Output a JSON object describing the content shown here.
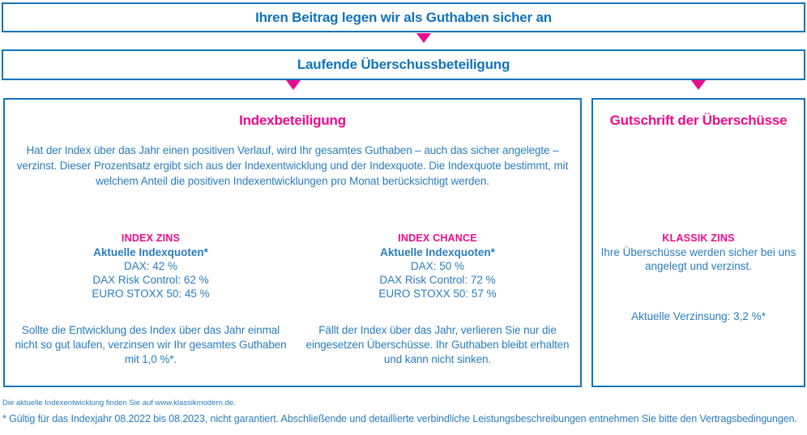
{
  "colors": {
    "blue_border": "#1173b9",
    "blue_text": "#2a7cbe",
    "pink": "#ec0b8b"
  },
  "banners": {
    "top": "Ihren Beitrag legen wir als Guthaben sicher an",
    "second": "Laufende Überschussbeteiligung"
  },
  "index_box": {
    "title": "Indexbeteiligung",
    "intro": "Hat der Index über das Jahr einen positiven Verlauf, wird Ihr gesamtes Guthaben – auch das sicher angelegte – verzinst. Dieser Prozentsatz ergibt sich aus der Indexentwicklung und der Indexquote. Die Indexquote bestimmt, mit welchem Anteil die positiven Indexentwicklungen pro Monat berücksichtigt werden.",
    "columns": [
      {
        "header": "INDEX ZINS",
        "subheader": "Aktuelle Indexquoten*",
        "quotes": [
          "DAX: 42 %",
          "DAX Risk Control: 62 %",
          "EURO STOXX 50: 45 %"
        ],
        "note": "Sollte die Entwicklung des Index über das Jahr einmal nicht so gut laufen, verzinsen wir Ihr gesamtes Guthaben mit 1,0 %*."
      },
      {
        "header": "INDEX CHANCE",
        "subheader": "Aktuelle Indexquoten*",
        "quotes": [
          "DAX: 50 %",
          "DAX Risk Control: 72 %",
          "EURO STOXX 50: 57 %"
        ],
        "note": "Fällt der Index über das Jahr, verlieren Sie nur die eingesetzen Überschüsse. Ihr Guthaben bleibt erhalten und kann nicht sinken."
      }
    ]
  },
  "credit_box": {
    "title": "Gutschrift der Überschüsse",
    "header": "KLASSIK ZINS",
    "text": "Ihre Überschüsse werden sicher bei uns angelegt und verzinst.",
    "rate": "Aktuelle Verzinsung: 3,2 %*"
  },
  "footnotes": {
    "line1": "Die aktuelle Indexentwicklung finden Sie auf www.klassikmodern.de.",
    "line2": "* Gültig für das Indexjahr 08.2022 bis 08.2023, nicht garantiert. Abschließende und detaillierte verbindliche Leistungsbeschreibungen entnehmen Sie bitte den Vertragsbedingungen."
  }
}
